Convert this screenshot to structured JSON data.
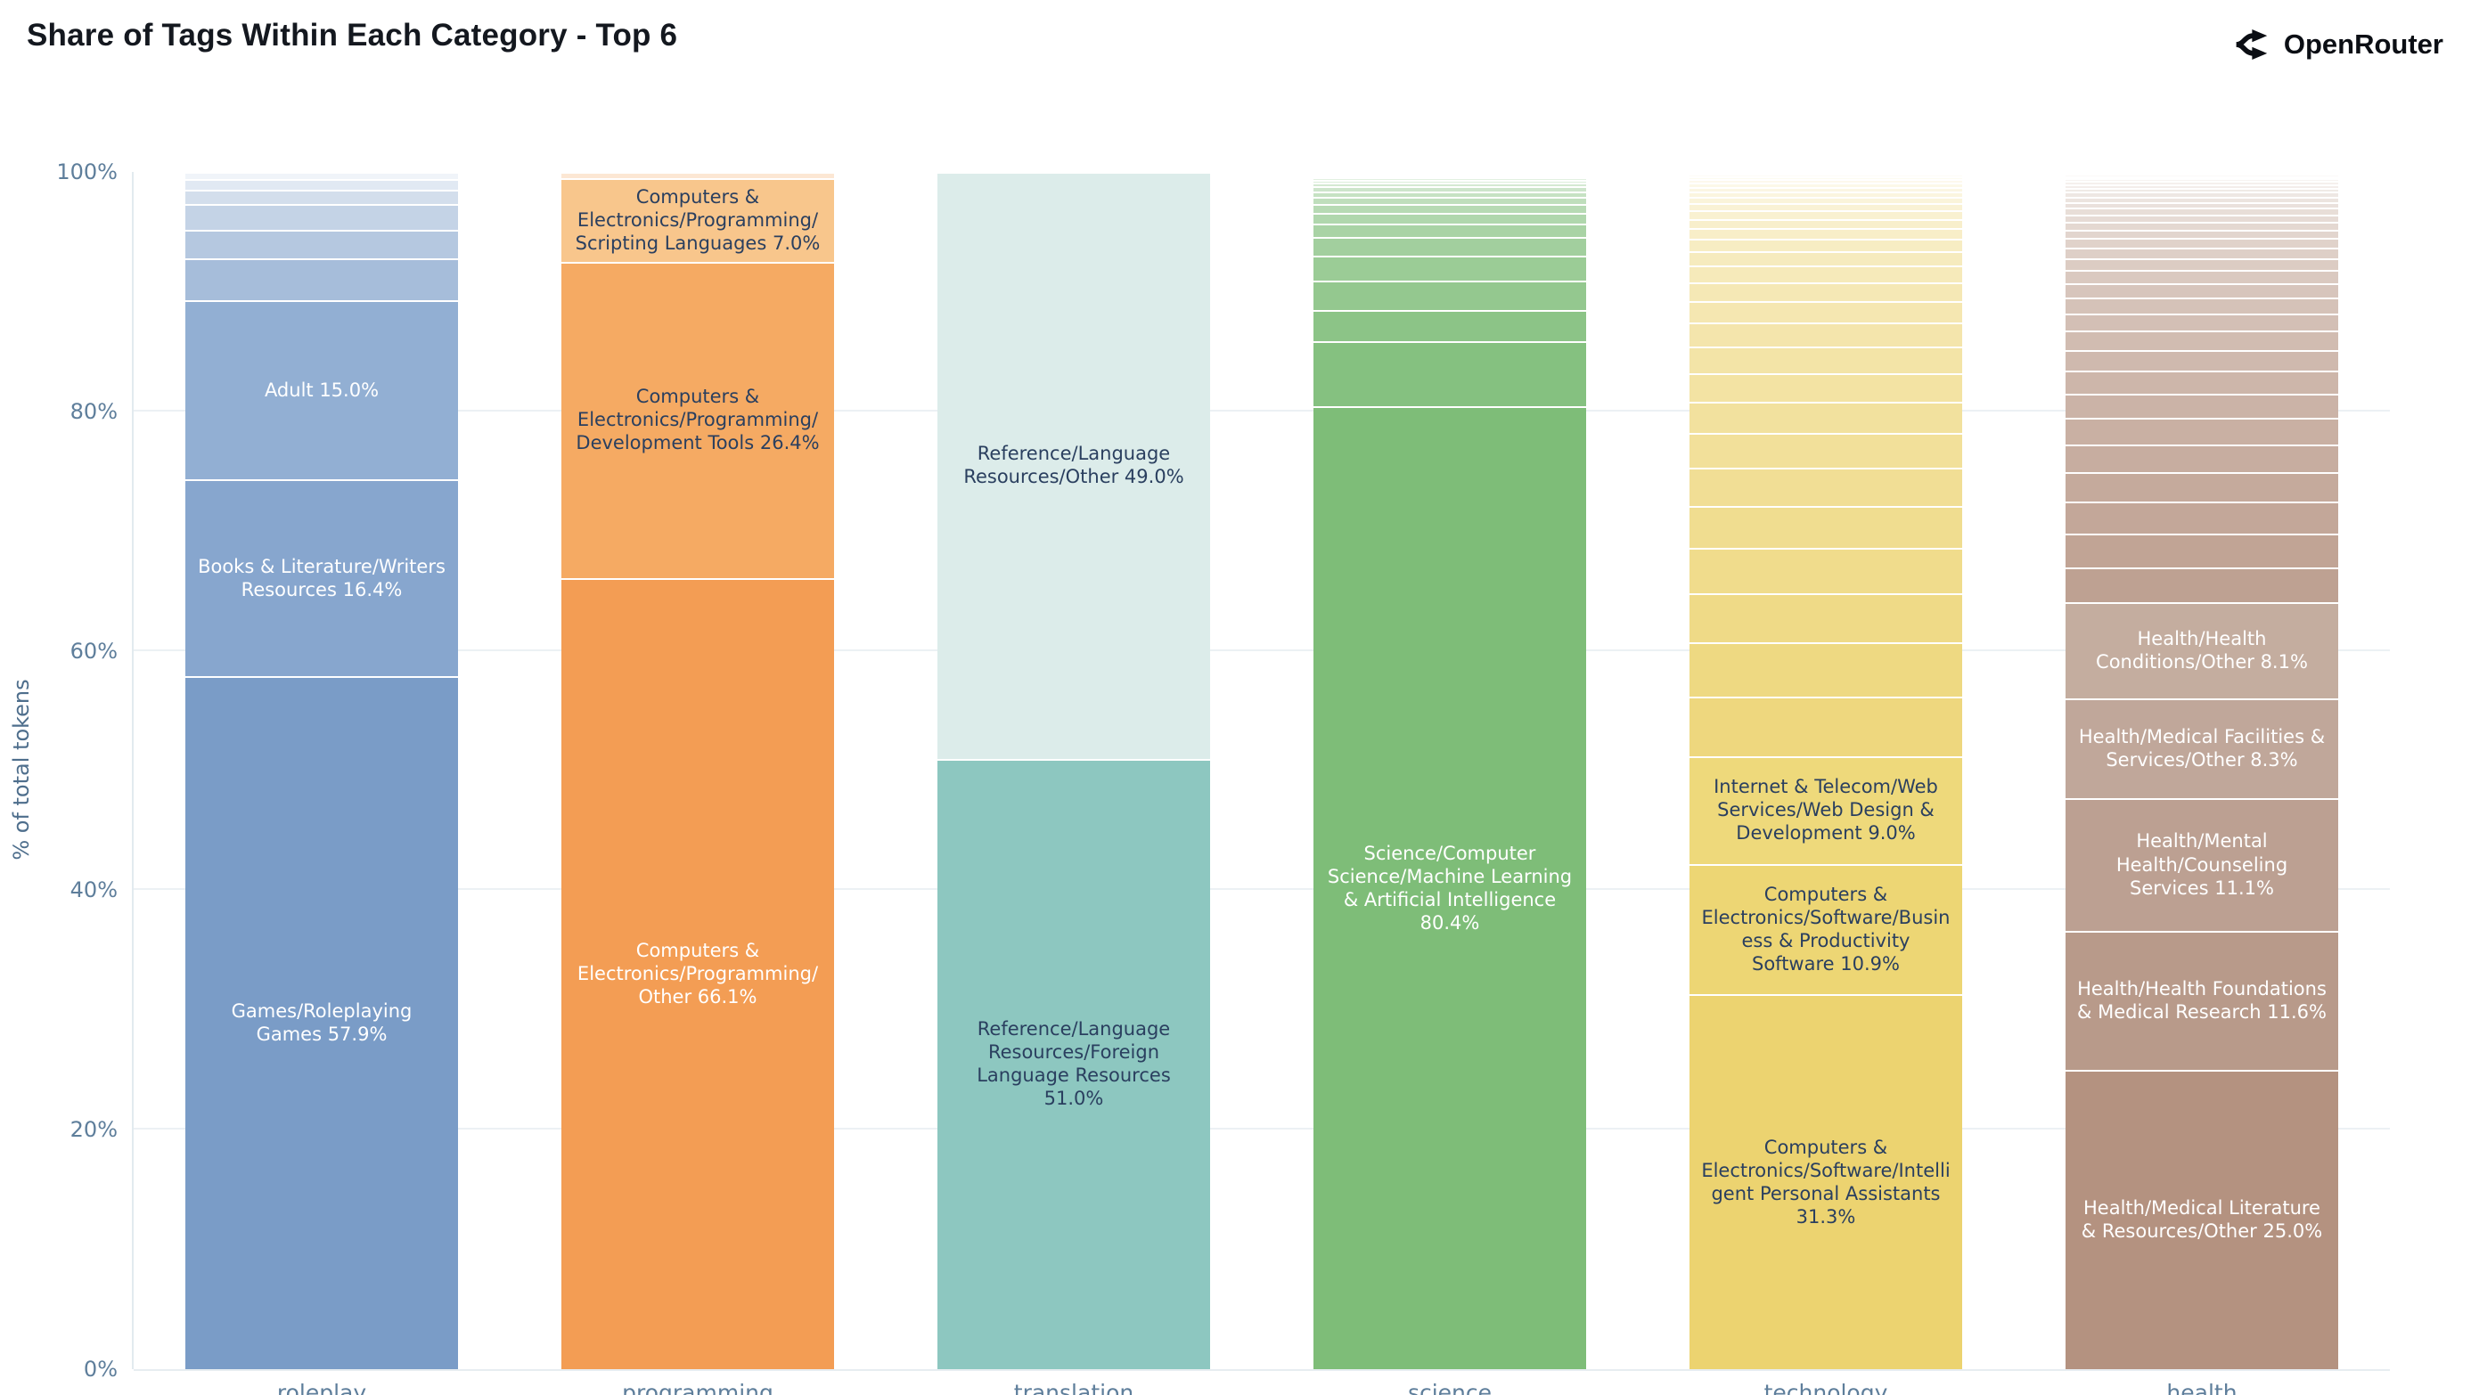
{
  "header": {
    "title": "Share of Tags Within Each Category - Top 6",
    "brand": "OpenRouter"
  },
  "colors": {
    "background": "#ffffff",
    "title_text": "#14181f",
    "axis_text": "#5e7e9b",
    "gridline": "#ecf1f4",
    "label_dark": "#2a3f5f",
    "label_light": "#ffffff"
  },
  "chart_data": {
    "type": "bar",
    "variant": "stacked-normalized-vertical",
    "title": "Share of Tags Within Each Category - Top 6",
    "xlabel": "",
    "ylabel": "% of total tokens",
    "ylim": [
      0,
      100
    ],
    "yticks": [
      "0%",
      "20%",
      "40%",
      "60%",
      "80%",
      "100%"
    ],
    "grid": "horizontal",
    "legend": "none",
    "categories": [
      "roleplay",
      "programming",
      "translation",
      "science",
      "technology",
      "health"
    ],
    "bars": [
      {
        "category": "roleplay",
        "base_color": "#7a9cc7",
        "segments": [
          {
            "label": "Games/Roleplaying Games 57.9%",
            "value": 57.9,
            "color": "#7a9cc7",
            "text_color": "#ffffff"
          },
          {
            "label": "Books & Literature/Writers Resources 16.4%",
            "value": 16.4,
            "color": "#87a6ce",
            "text_color": "#ffffff"
          },
          {
            "label": "Adult 15.0%",
            "value": 15.0,
            "color": "#92afd3",
            "text_color": "#ffffff"
          },
          {
            "value": 3.5
          },
          {
            "value": 2.4
          },
          {
            "value": 2.1
          },
          {
            "value": 1.2
          },
          {
            "value": 0.9
          },
          {
            "value": 0.6
          }
        ]
      },
      {
        "category": "programming",
        "base_color": "#f39d54",
        "segments": [
          {
            "label": "Computers & Electronics/Programming/Other 66.1%",
            "value": 66.1,
            "color": "#f39d54",
            "text_color": "#ffffff"
          },
          {
            "label": "Computers & Electronics/Programming/Development Tools 26.4%",
            "value": 26.4,
            "color": "#f5aa63",
            "text_color": "#2a3f5f"
          },
          {
            "label": "Computers & Electronics/Programming/Scripting Languages 7.0%",
            "value": 7.0,
            "color": "#f8c68c",
            "text_color": "#2a3f5f"
          },
          {
            "value": 0.5
          }
        ]
      },
      {
        "category": "translation",
        "base_color": "#8dc7c0",
        "segments": [
          {
            "label": "Reference/Language Resources/Foreign Language Resources 51.0%",
            "value": 51.0,
            "color": "#8dc7c0",
            "text_color": "#2a3f5f"
          },
          {
            "label": "Reference/Language Resources/Other 49.0%",
            "value": 49.0,
            "color": "#dcecea",
            "text_color": "#2a3f5f"
          }
        ]
      },
      {
        "category": "science",
        "base_color": "#7ebd78",
        "segments": [
          {
            "label": "Science/Computer Science/Machine Learning & Artificial Intelligence 80.4%",
            "value": 80.4,
            "color": "#7ebd78",
            "text_color": "#ffffff"
          },
          {
            "value": 5.5
          },
          {
            "value": 2.6
          },
          {
            "value": 2.4
          },
          {
            "value": 2.1
          },
          {
            "value": 1.6
          },
          {
            "value": 1.1
          },
          {
            "value": 0.9
          },
          {
            "value": 0.7
          },
          {
            "value": 0.6
          },
          {
            "value": 0.5
          },
          {
            "value": 0.4
          },
          {
            "value": 0.3
          },
          {
            "value": 0.25
          },
          {
            "value": 0.2
          },
          {
            "value": 0.15
          },
          {
            "value": 0.15
          },
          {
            "value": 0.15
          }
        ]
      },
      {
        "category": "technology",
        "base_color": "#ecd370",
        "segments": [
          {
            "label": "Computers & Electronics/Software/Intelligent Personal Assistants 31.3%",
            "value": 31.3,
            "color": "#ecd370",
            "text_color": "#2a3f5f"
          },
          {
            "label": "Computers & Electronics/Software/Business & Productivity Software 10.9%",
            "value": 10.9,
            "color": "#edd674",
            "text_color": "#2a3f5f"
          },
          {
            "label": "Internet & Telecom/Web Services/Web Design & Development 9.0%",
            "value": 9.0,
            "color": "#eed97b",
            "text_color": "#2a3f5f"
          },
          {
            "value": 5.0
          },
          {
            "value": 4.5
          },
          {
            "value": 4.1
          },
          {
            "value": 3.8
          },
          {
            "value": 3.5
          },
          {
            "value": 3.2
          },
          {
            "value": 2.9
          },
          {
            "value": 2.6
          },
          {
            "value": 2.4
          },
          {
            "value": 2.2
          },
          {
            "value": 2.0
          },
          {
            "value": 1.8
          },
          {
            "value": 1.6
          },
          {
            "value": 1.4
          },
          {
            "value": 1.2
          },
          {
            "value": 1.0
          },
          {
            "value": 0.9
          },
          {
            "value": 0.8
          },
          {
            "value": 0.7
          },
          {
            "value": 0.6
          },
          {
            "value": 0.5
          },
          {
            "value": 0.45
          },
          {
            "value": 0.4
          },
          {
            "value": 0.35
          },
          {
            "value": 0.3
          },
          {
            "value": 0.25
          },
          {
            "value": 0.2
          },
          {
            "value": 0.15
          }
        ]
      },
      {
        "category": "health",
        "base_color": "#b49280",
        "segments": [
          {
            "label": "Health/Medical Literature & Resources/Other 25.0%",
            "value": 25.0,
            "color": "#b49280",
            "text_color": "#ffffff"
          },
          {
            "label": "Health/Health Foundations & Medical Research 11.6%",
            "value": 11.6,
            "color": "#b89a8a",
            "text_color": "#ffffff"
          },
          {
            "label": "Health/Mental Health/Counseling Services 11.1%",
            "value": 11.1,
            "color": "#bca092",
            "text_color": "#ffffff"
          },
          {
            "label": "Health/Medical Facilities & Services/Other 8.3%",
            "value": 8.3,
            "color": "#c0a79a",
            "text_color": "#ffffff"
          },
          {
            "label": "Health/Health Conditions/Other 8.1%",
            "value": 8.1,
            "color": "#c4ad9f",
            "text_color": "#ffffff"
          },
          {
            "value": 2.9
          },
          {
            "value": 2.8
          },
          {
            "value": 2.65
          },
          {
            "value": 2.5
          },
          {
            "value": 2.3
          },
          {
            "value": 2.2
          },
          {
            "value": 2.05
          },
          {
            "value": 1.9
          },
          {
            "value": 1.75
          },
          {
            "value": 1.6
          },
          {
            "value": 1.45
          },
          {
            "value": 1.3
          },
          {
            "value": 1.2
          },
          {
            "value": 1.1
          },
          {
            "value": 1.0
          },
          {
            "value": 0.9
          },
          {
            "value": 0.8
          },
          {
            "value": 0.7
          },
          {
            "value": 0.65
          },
          {
            "value": 0.6
          },
          {
            "value": 0.55
          },
          {
            "value": 0.5
          },
          {
            "value": 0.45
          },
          {
            "value": 0.4
          },
          {
            "value": 0.35
          },
          {
            "value": 0.3
          },
          {
            "value": 0.25
          },
          {
            "value": 0.22
          },
          {
            "value": 0.2
          },
          {
            "value": 0.18
          },
          {
            "value": 0.15
          }
        ]
      }
    ]
  }
}
